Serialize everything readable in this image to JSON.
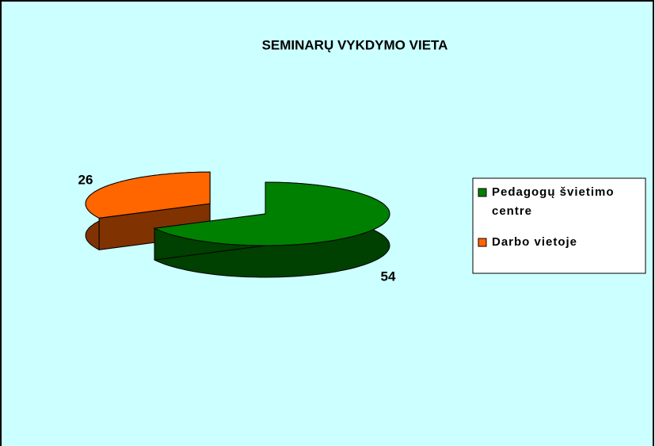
{
  "chart_data": {
    "type": "pie",
    "title": "SEMINARŲ  VYKDYMO  VIETA",
    "categories": [
      "Pedagogų švietimo centre",
      "Darbo vietoje"
    ],
    "values": [
      54,
      26
    ],
    "colors": [
      "#008000",
      "#ff6600"
    ]
  }
}
